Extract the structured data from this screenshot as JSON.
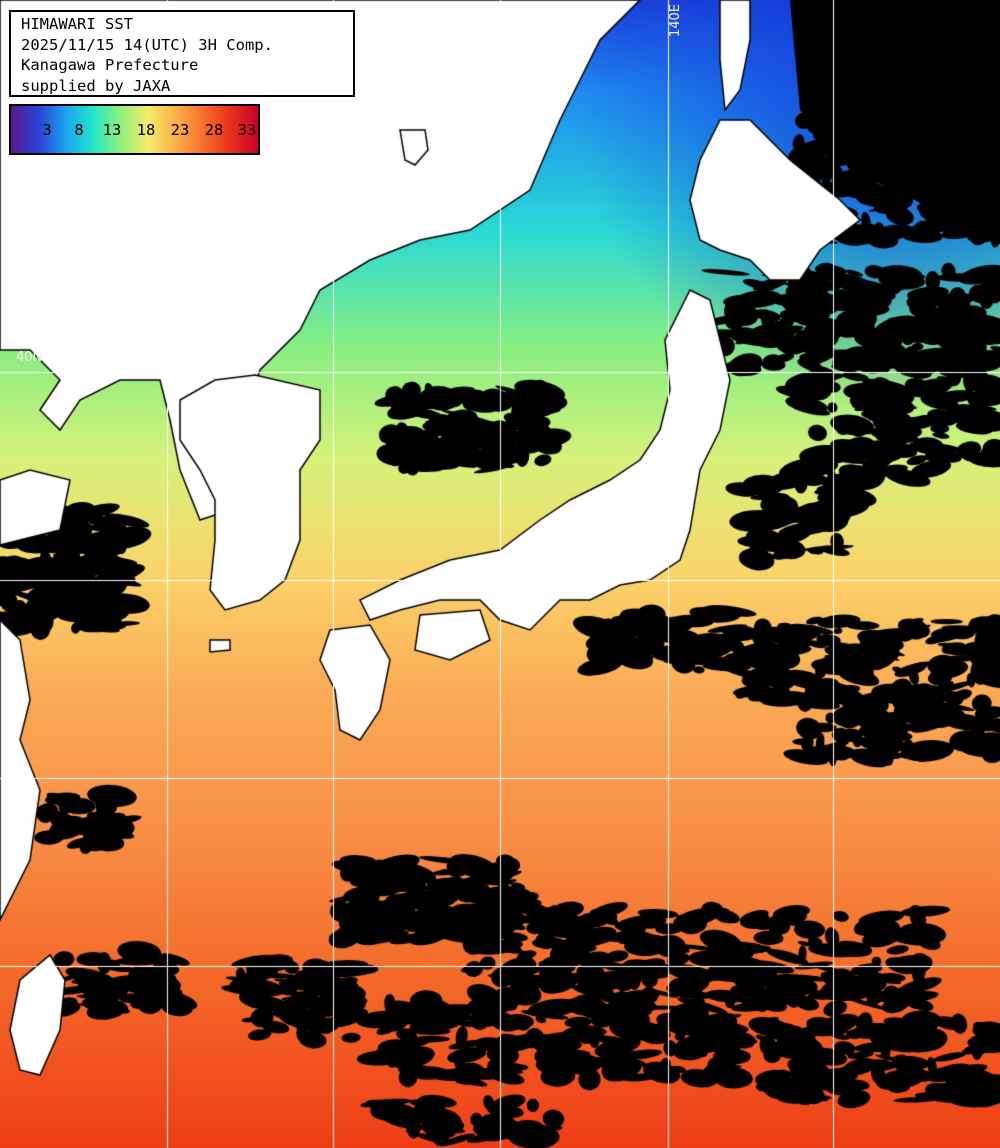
{
  "header": {
    "line1": "HIMAWARI SST",
    "line2": "2025/11/15 14(UTC) 3H Comp.",
    "line3": "Kanagawa Prefecture",
    "line4": "supplied by JAXA"
  },
  "colorbar": {
    "ticks": [
      "3",
      "8",
      "13",
      "18",
      "23",
      "28",
      "33"
    ],
    "colors": [
      "#5e1a8c",
      "#2a3fd6",
      "#1aa4ef",
      "#22e6c9",
      "#8ff07a",
      "#f5ec6a",
      "#fbb04a",
      "#f7702c",
      "#e8301c",
      "#c9002a"
    ]
  },
  "graticule": {
    "lon_label": "140E",
    "lat_label": "40N"
  },
  "colors": {
    "land": "#ffffff",
    "cloud_nodata": "#000000",
    "grid": "#ffffff",
    "coastline": "#000000"
  }
}
